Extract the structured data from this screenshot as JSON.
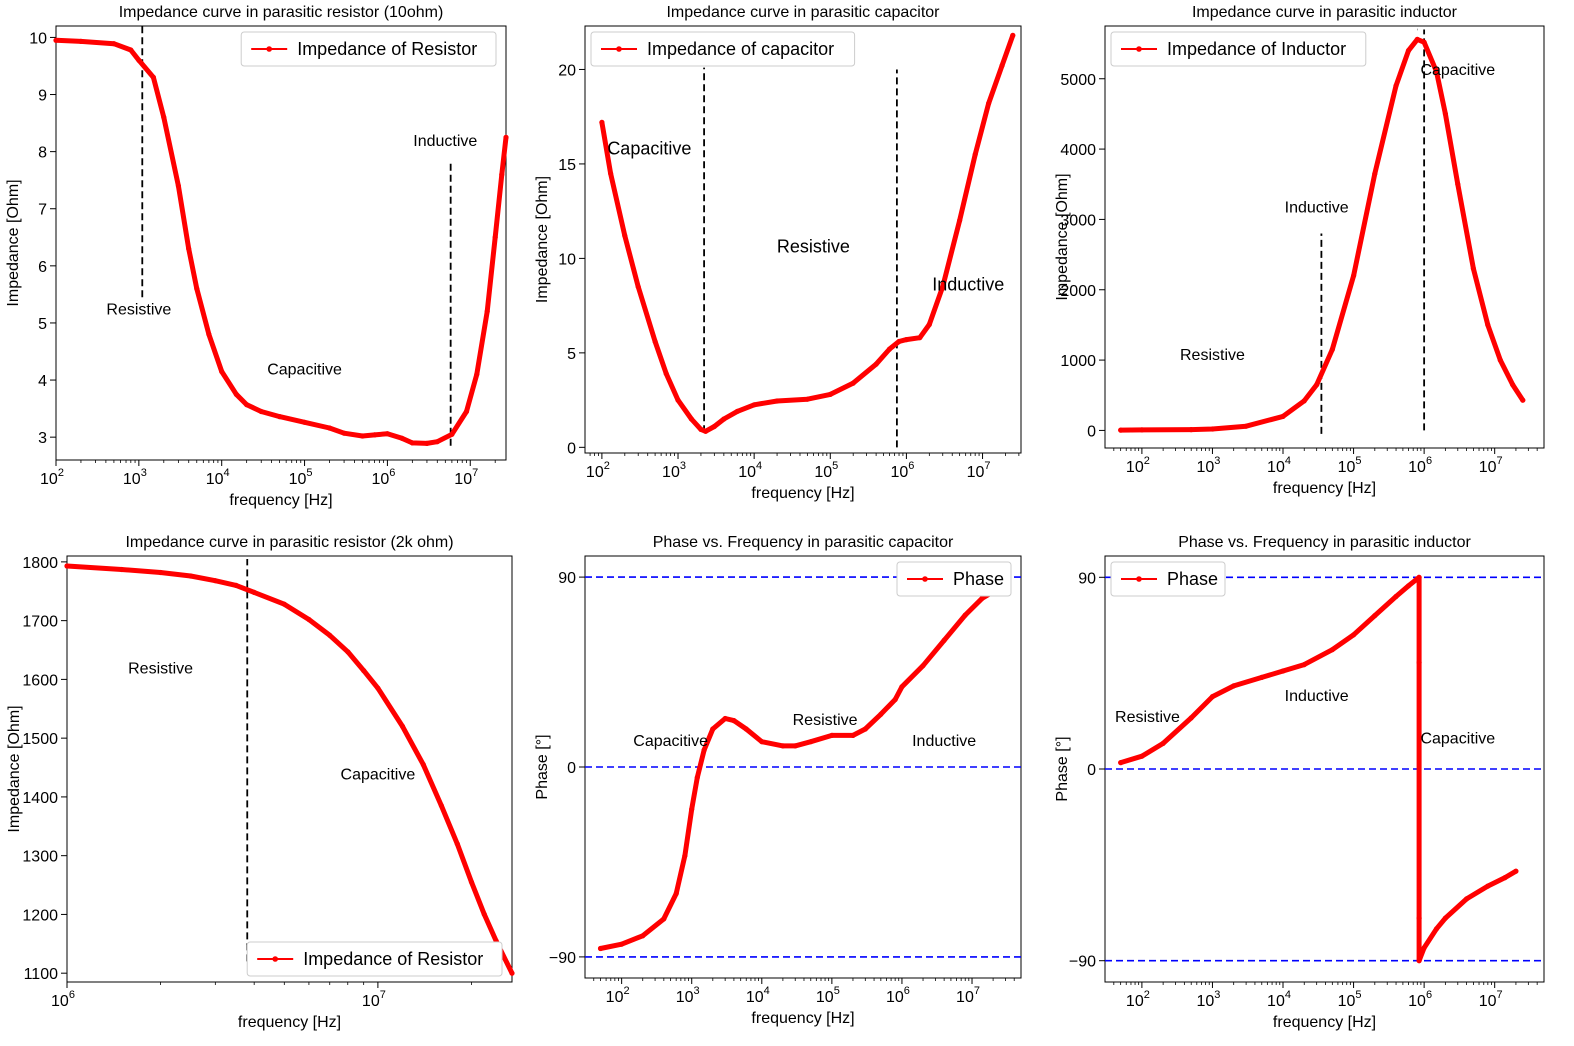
{
  "chart_data": [
    {
      "type": "line",
      "title": "Impedance curve in parasitic resistor (10ohm)",
      "xlabel": "frequency [Hz]",
      "ylabel": "Impedance [Ohm]",
      "xscale": "log",
      "xlim": [
        100,
        27000000
      ],
      "ylim": [
        2.6,
        10.2
      ],
      "xticks": [
        100,
        1000,
        10000,
        100000,
        1000000,
        10000000
      ],
      "yticks": [
        3,
        4,
        5,
        6,
        7,
        8,
        9,
        10
      ],
      "legend": "top-right",
      "series": [
        {
          "name": "Impedance of Resistor",
          "color": "#ff0000",
          "points": [
            [
              100,
              9.95
            ],
            [
              200,
              9.93
            ],
            [
              500,
              9.89
            ],
            [
              800,
              9.78
            ],
            [
              1000,
              9.6
            ],
            [
              1500,
              9.3
            ],
            [
              2000,
              8.6
            ],
            [
              3000,
              7.4
            ],
            [
              4000,
              6.3
            ],
            [
              5000,
              5.6
            ],
            [
              7000,
              4.8
            ],
            [
              10000,
              4.15
            ],
            [
              15000,
              3.75
            ],
            [
              20000,
              3.57
            ],
            [
              30000,
              3.45
            ],
            [
              50000,
              3.36
            ],
            [
              100000,
              3.26
            ],
            [
              200000,
              3.16
            ],
            [
              300000,
              3.07
            ],
            [
              500000,
              3.02
            ],
            [
              700000,
              3.04
            ],
            [
              1000000,
              3.06
            ],
            [
              1500000,
              2.98
            ],
            [
              2000000,
              2.9
            ],
            [
              3000000,
              2.89
            ],
            [
              4000000,
              2.92
            ],
            [
              6000000,
              3.05
            ],
            [
              9000000,
              3.45
            ],
            [
              12000000,
              4.1
            ],
            [
              16000000,
              5.2
            ],
            [
              20000000,
              6.5
            ],
            [
              24000000,
              7.6
            ],
            [
              27000000,
              8.25
            ]
          ]
        }
      ],
      "vlines": [
        {
          "x": 1100,
          "y": [
            5.45,
            10.2
          ]
        },
        {
          "x": 5800000,
          "y": [
            2.85,
            7.8
          ]
        }
      ],
      "annotations": [
        {
          "text": "Resistive",
          "x": 1000,
          "y": 5.15
        },
        {
          "text": "Capacitive",
          "x": 100000,
          "y": 4.1
        },
        {
          "text": "Inductive",
          "x": 5000000,
          "y": 8.1
        }
      ]
    },
    {
      "type": "line",
      "title": "Impedance curve in parasitic capacitor",
      "xlabel": "frequency [Hz]",
      "ylabel": "Impedance [Ohm]",
      "xscale": "log",
      "xlim": [
        60,
        32000000
      ],
      "ylim": [
        -0.3,
        22.3
      ],
      "xticks": [
        100,
        1000,
        10000,
        100000,
        1000000,
        10000000
      ],
      "yticks": [
        0,
        5,
        10,
        15,
        20
      ],
      "legend": "top-left",
      "series": [
        {
          "name": "Impedance of capacitor",
          "color": "#ff0000",
          "points": [
            [
              100,
              17.2
            ],
            [
              130,
              14.5
            ],
            [
              200,
              11.2
            ],
            [
              300,
              8.5
            ],
            [
              500,
              5.6
            ],
            [
              700,
              3.9
            ],
            [
              1000,
              2.5
            ],
            [
              1500,
              1.5
            ],
            [
              2000,
              0.95
            ],
            [
              2300,
              0.85
            ],
            [
              3000,
              1.1
            ],
            [
              4000,
              1.5
            ],
            [
              6000,
              1.9
            ],
            [
              10000,
              2.25
            ],
            [
              20000,
              2.45
            ],
            [
              50000,
              2.55
            ],
            [
              100000,
              2.8
            ],
            [
              200000,
              3.4
            ],
            [
              400000,
              4.4
            ],
            [
              600000,
              5.2
            ],
            [
              800000,
              5.6
            ],
            [
              1000000,
              5.7
            ],
            [
              1500000,
              5.8
            ],
            [
              2000000,
              6.5
            ],
            [
              3000000,
              8.5
            ],
            [
              5000000,
              12
            ],
            [
              8000000,
              15.5
            ],
            [
              12000000,
              18.2
            ],
            [
              18000000,
              20.2
            ],
            [
              25000000,
              21.8
            ]
          ]
        }
      ],
      "vlines": [
        {
          "x": 2200,
          "y": [
            0.8,
            20.1
          ]
        },
        {
          "x": 750000,
          "y": [
            0,
            20
          ]
        }
      ],
      "annotations": [
        {
          "text": "Capacitive",
          "x": 420,
          "y": 15.5
        },
        {
          "text": "Resistive",
          "x": 60000,
          "y": 10.3
        },
        {
          "text": "Inductive",
          "x": 6500000,
          "y": 8.3
        }
      ]
    },
    {
      "type": "line",
      "title": "Impedance curve in parasitic inductor",
      "xlabel": "frequency [Hz]",
      "ylabel": "Impedance [Ohm]",
      "xscale": "log",
      "xlim": [
        30,
        50000000
      ],
      "ylim": [
        -250,
        5750
      ],
      "xticks": [
        100,
        1000,
        10000,
        100000,
        1000000,
        10000000
      ],
      "yticks": [
        0,
        1000,
        2000,
        3000,
        4000,
        5000
      ],
      "legend": "top-left",
      "series": [
        {
          "name": "Impedance of Inductor",
          "color": "#ff0000",
          "points": [
            [
              50,
              5
            ],
            [
              100,
              8
            ],
            [
              500,
              12
            ],
            [
              1000,
              20
            ],
            [
              3000,
              60
            ],
            [
              10000,
              200
            ],
            [
              20000,
              420
            ],
            [
              30000,
              650
            ],
            [
              50000,
              1150
            ],
            [
              100000,
              2200
            ],
            [
              200000,
              3650
            ],
            [
              400000,
              4900
            ],
            [
              600000,
              5400
            ],
            [
              800000,
              5560
            ],
            [
              1000000,
              5520
            ],
            [
              1500000,
              5100
            ],
            [
              2000000,
              4500
            ],
            [
              3000000,
              3500
            ],
            [
              5000000,
              2300
            ],
            [
              8000000,
              1500
            ],
            [
              12000000,
              1000
            ],
            [
              18000000,
              650
            ],
            [
              25000000,
              430
            ]
          ]
        }
      ],
      "vlines": [
        {
          "x": 35000,
          "y": [
            -50,
            2800
          ]
        },
        {
          "x": 800000,
          "y": [
            5700,
            5700
          ]
        },
        {
          "x": 1000000,
          "y": [
            0,
            5700
          ]
        }
      ],
      "annotations": [
        {
          "text": "Resistive",
          "x": 1000,
          "y": 1000
        },
        {
          "text": "Inductive",
          "x": 30000,
          "y": 3100
        },
        {
          "text": "Capacitive",
          "x": 3000000,
          "y": 5050
        }
      ]
    },
    {
      "type": "line",
      "title": "Impedance curve in parasitic resistor (2k ohm)",
      "xlabel": "frequency [Hz]",
      "ylabel": "Impedance [Ohm]",
      "xscale": "log",
      "xlim": [
        1000000,
        27000000
      ],
      "ylim": [
        1085,
        1810
      ],
      "xticks": [
        1000000,
        10000000
      ],
      "yticks": [
        1100,
        1200,
        1300,
        1400,
        1500,
        1600,
        1700,
        1800
      ],
      "legend": "bottom-right",
      "series": [
        {
          "name": "Impedance of Resistor",
          "color": "#ff0000",
          "points": [
            [
              1000000,
              1793
            ],
            [
              1500000,
              1787
            ],
            [
              2000000,
              1782
            ],
            [
              2500000,
              1776
            ],
            [
              3000000,
              1768
            ],
            [
              3500000,
              1760
            ],
            [
              4000000,
              1748
            ],
            [
              5000000,
              1728
            ],
            [
              6000000,
              1702
            ],
            [
              7000000,
              1675
            ],
            [
              8000000,
              1647
            ],
            [
              9000000,
              1615
            ],
            [
              10000000,
              1585
            ],
            [
              12000000,
              1520
            ],
            [
              14000000,
              1455
            ],
            [
              16000000,
              1385
            ],
            [
              18000000,
              1320
            ],
            [
              20000000,
              1255
            ],
            [
              22000000,
              1200
            ],
            [
              24000000,
              1155
            ],
            [
              27000000,
              1100
            ]
          ]
        }
      ],
      "vlines": [
        {
          "x": 3800000,
          "y": [
            1120,
            1805
          ]
        }
      ],
      "annotations": [
        {
          "text": "Resistive",
          "x": 2000000,
          "y": 1610
        },
        {
          "text": "Capacitive",
          "x": 10000000,
          "y": 1430
        }
      ]
    },
    {
      "type": "line",
      "title": "Phase vs. Frequency in parasitic capacitor",
      "xlabel": "frequency [Hz]",
      "ylabel": "Phase [°]",
      "xscale": "log",
      "xlim": [
        30,
        50000000
      ],
      "ylim": [
        -100,
        100
      ],
      "xticks": [
        100,
        1000,
        10000,
        100000,
        1000000,
        10000000
      ],
      "yticks": [
        -90,
        0,
        90
      ],
      "legend": "top-right",
      "series": [
        {
          "name": "Phase",
          "color": "#ff0000",
          "points": [
            [
              50,
              -86
            ],
            [
              100,
              -84
            ],
            [
              200,
              -80
            ],
            [
              400,
              -72
            ],
            [
              600,
              -60
            ],
            [
              800,
              -42
            ],
            [
              1000,
              -20
            ],
            [
              1200,
              -5
            ],
            [
              1500,
              8
            ],
            [
              2000,
              18
            ],
            [
              3000,
              23
            ],
            [
              4000,
              22
            ],
            [
              6000,
              18
            ],
            [
              10000,
              12
            ],
            [
              20000,
              10
            ],
            [
              30000,
              10
            ],
            [
              50000,
              12
            ],
            [
              100000,
              15
            ],
            [
              200000,
              15
            ],
            [
              300000,
              18
            ],
            [
              500000,
              25
            ],
            [
              800000,
              32
            ],
            [
              1000000,
              38
            ],
            [
              2000000,
              48
            ],
            [
              4000000,
              60
            ],
            [
              8000000,
              72
            ],
            [
              14000000,
              80
            ],
            [
              20000000,
              83
            ]
          ]
        }
      ],
      "hlines": [
        90,
        0,
        -90
      ],
      "annotations": [
        {
          "text": "Capacitive",
          "x": 500,
          "y": 10
        },
        {
          "text": "Resistive",
          "x": 80000,
          "y": 20
        },
        {
          "text": "Inductive",
          "x": 4000000,
          "y": 10
        }
      ]
    },
    {
      "type": "line",
      "title": "Phase vs. Frequency in parasitic inductor",
      "xlabel": "frequency [Hz]",
      "ylabel": "Phase [°]",
      "xscale": "log",
      "xlim": [
        30,
        50000000
      ],
      "ylim": [
        -100,
        100
      ],
      "xticks": [
        100,
        1000,
        10000,
        100000,
        1000000,
        10000000
      ],
      "yticks": [
        -90,
        0,
        90
      ],
      "legend": "top-left",
      "series": [
        {
          "name": "Phase",
          "color": "#ff0000",
          "points": [
            [
              50,
              3
            ],
            [
              100,
              6
            ],
            [
              200,
              12
            ],
            [
              500,
              24
            ],
            [
              1000,
              34
            ],
            [
              2000,
              39
            ],
            [
              5000,
              43
            ],
            [
              10000,
              46
            ],
            [
              20000,
              49
            ],
            [
              50000,
              56
            ],
            [
              100000,
              63
            ],
            [
              200000,
              72
            ],
            [
              400000,
              81
            ],
            [
              600000,
              86
            ],
            [
              850000,
              90
            ],
            [
              850000,
              50
            ],
            [
              850000,
              -70
            ],
            [
              850000,
              -90
            ],
            [
              1000000,
              -84
            ],
            [
              1500000,
              -75
            ],
            [
              2000000,
              -70
            ],
            [
              4000000,
              -61
            ],
            [
              8000000,
              -55
            ],
            [
              14000000,
              -51
            ],
            [
              20000000,
              -48
            ]
          ]
        }
      ],
      "hlines": [
        90,
        0,
        -90
      ],
      "annotations": [
        {
          "text": "Resistive",
          "x": 120,
          "y": 22
        },
        {
          "text": "Inductive",
          "x": 30000,
          "y": 32
        },
        {
          "text": "Capacitive",
          "x": 3000000,
          "y": 12
        }
      ]
    }
  ]
}
